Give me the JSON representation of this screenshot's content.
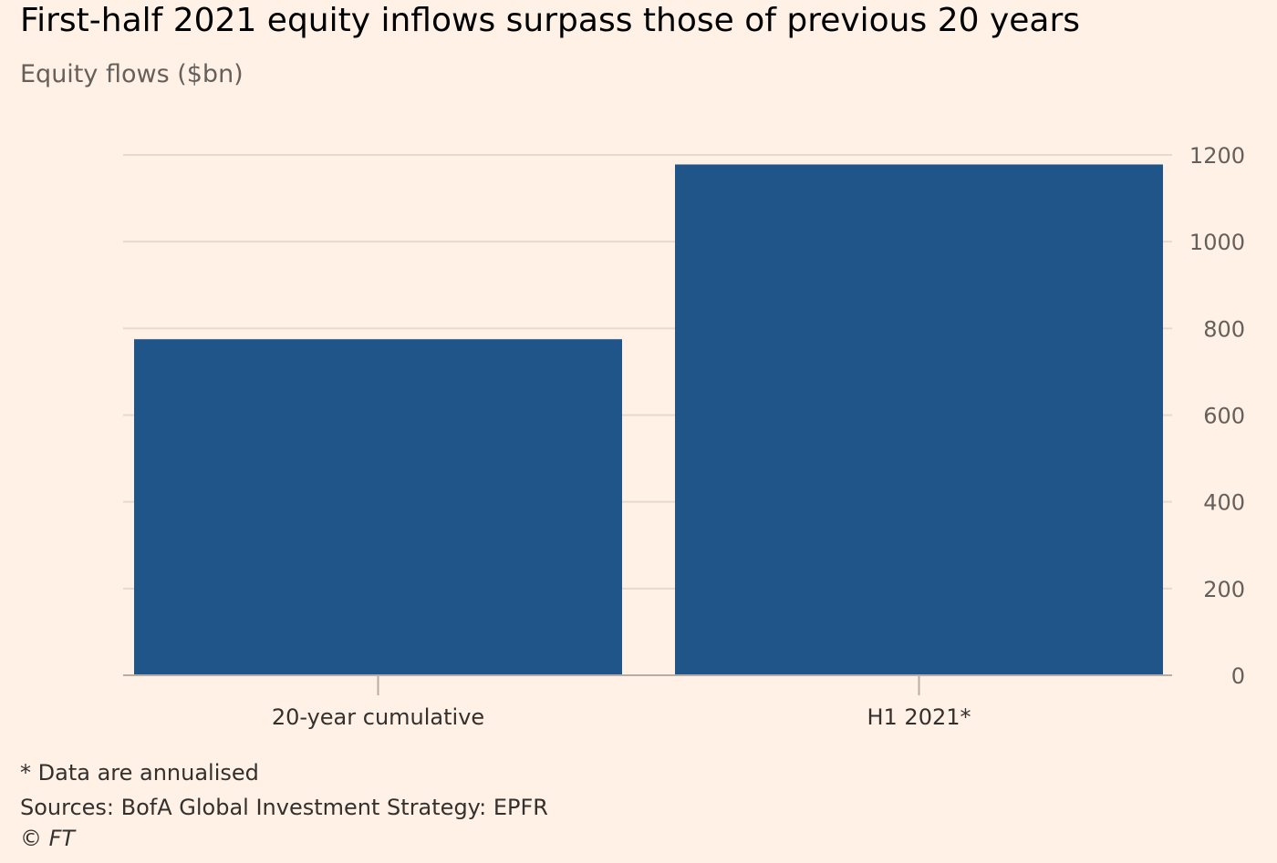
{
  "title": "First-half 2021 equity inflows surpass those of previous 20 years",
  "subtitle": "Equity flows ($bn)",
  "footnote": "* Data are annualised",
  "sources": "Sources: BofA Global Investment Strategy: EPFR",
  "copyright": "© FT",
  "colors": {
    "bar": "#20558a",
    "background": "#fff1e5",
    "grid": "#e6d9ce",
    "axis": "#b8ada4"
  },
  "chart_data": {
    "type": "bar",
    "categories": [
      "20-year cumulative",
      "H1 2021*"
    ],
    "values": [
      775,
      1178
    ],
    "ylim": [
      0,
      1200
    ],
    "yticks": [
      "0",
      "200",
      "400",
      "600",
      "800",
      "1000",
      "1200"
    ],
    "ytick_values": [
      0,
      200,
      400,
      600,
      800,
      1000,
      1200
    ],
    "grid": true,
    "yaxis_side": "right"
  }
}
